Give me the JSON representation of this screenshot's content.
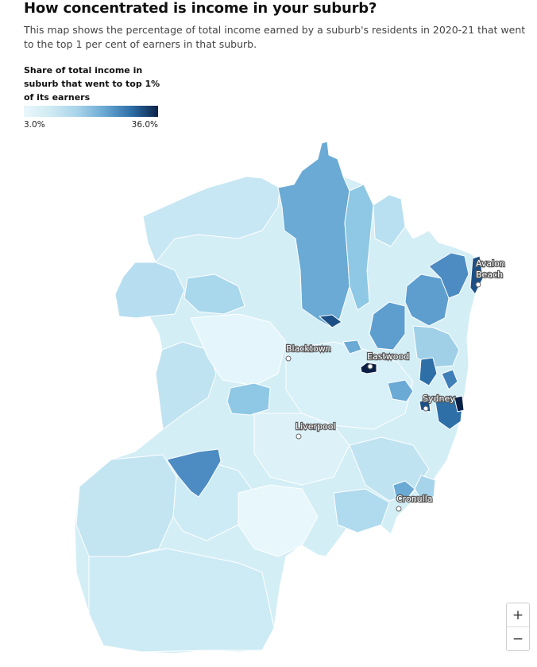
{
  "header": {
    "title": "How concentrated is income in your suburb?",
    "subtitle": "This map shows the percentage of total income earned by a suburb's residents in 2020-21 that went to the top 1 per cent of earners in that suburb."
  },
  "legend": {
    "title": "Share of total income in suburb that went to top 1% of its earners",
    "min_label": "3.0%",
    "max_label": "36.0%",
    "min_value": 3.0,
    "max_value": 36.0,
    "colors": [
      "#e9f7fb",
      "#cfeaf3",
      "#a8d3ea",
      "#6aa9d3",
      "#2e6fa8",
      "#0b2248"
    ]
  },
  "places": [
    {
      "name": "Avalon Beach",
      "lines": [
        "Avalon",
        "Beach"
      ]
    },
    {
      "name": "Blacktown",
      "lines": [
        "Blacktown"
      ]
    },
    {
      "name": "Eastwood",
      "lines": [
        "Eastwood"
      ]
    },
    {
      "name": "Sydney",
      "lines": [
        "Sydney"
      ]
    },
    {
      "name": "Liverpool",
      "lines": [
        "Liverpool"
      ]
    },
    {
      "name": "Cronulla",
      "lines": [
        "Cronulla"
      ]
    }
  ],
  "zoom": {
    "in_label": "+",
    "out_label": "−"
  },
  "map_colors": {
    "outline": "#ffffff",
    "base": "#cdebf4",
    "light": "#e3f5fa",
    "mid": "#9fd0e8",
    "blue": "#6aaad4",
    "strong": "#3f7fb8",
    "dark": "#1c4f86",
    "darkest": "#0b1f45"
  }
}
